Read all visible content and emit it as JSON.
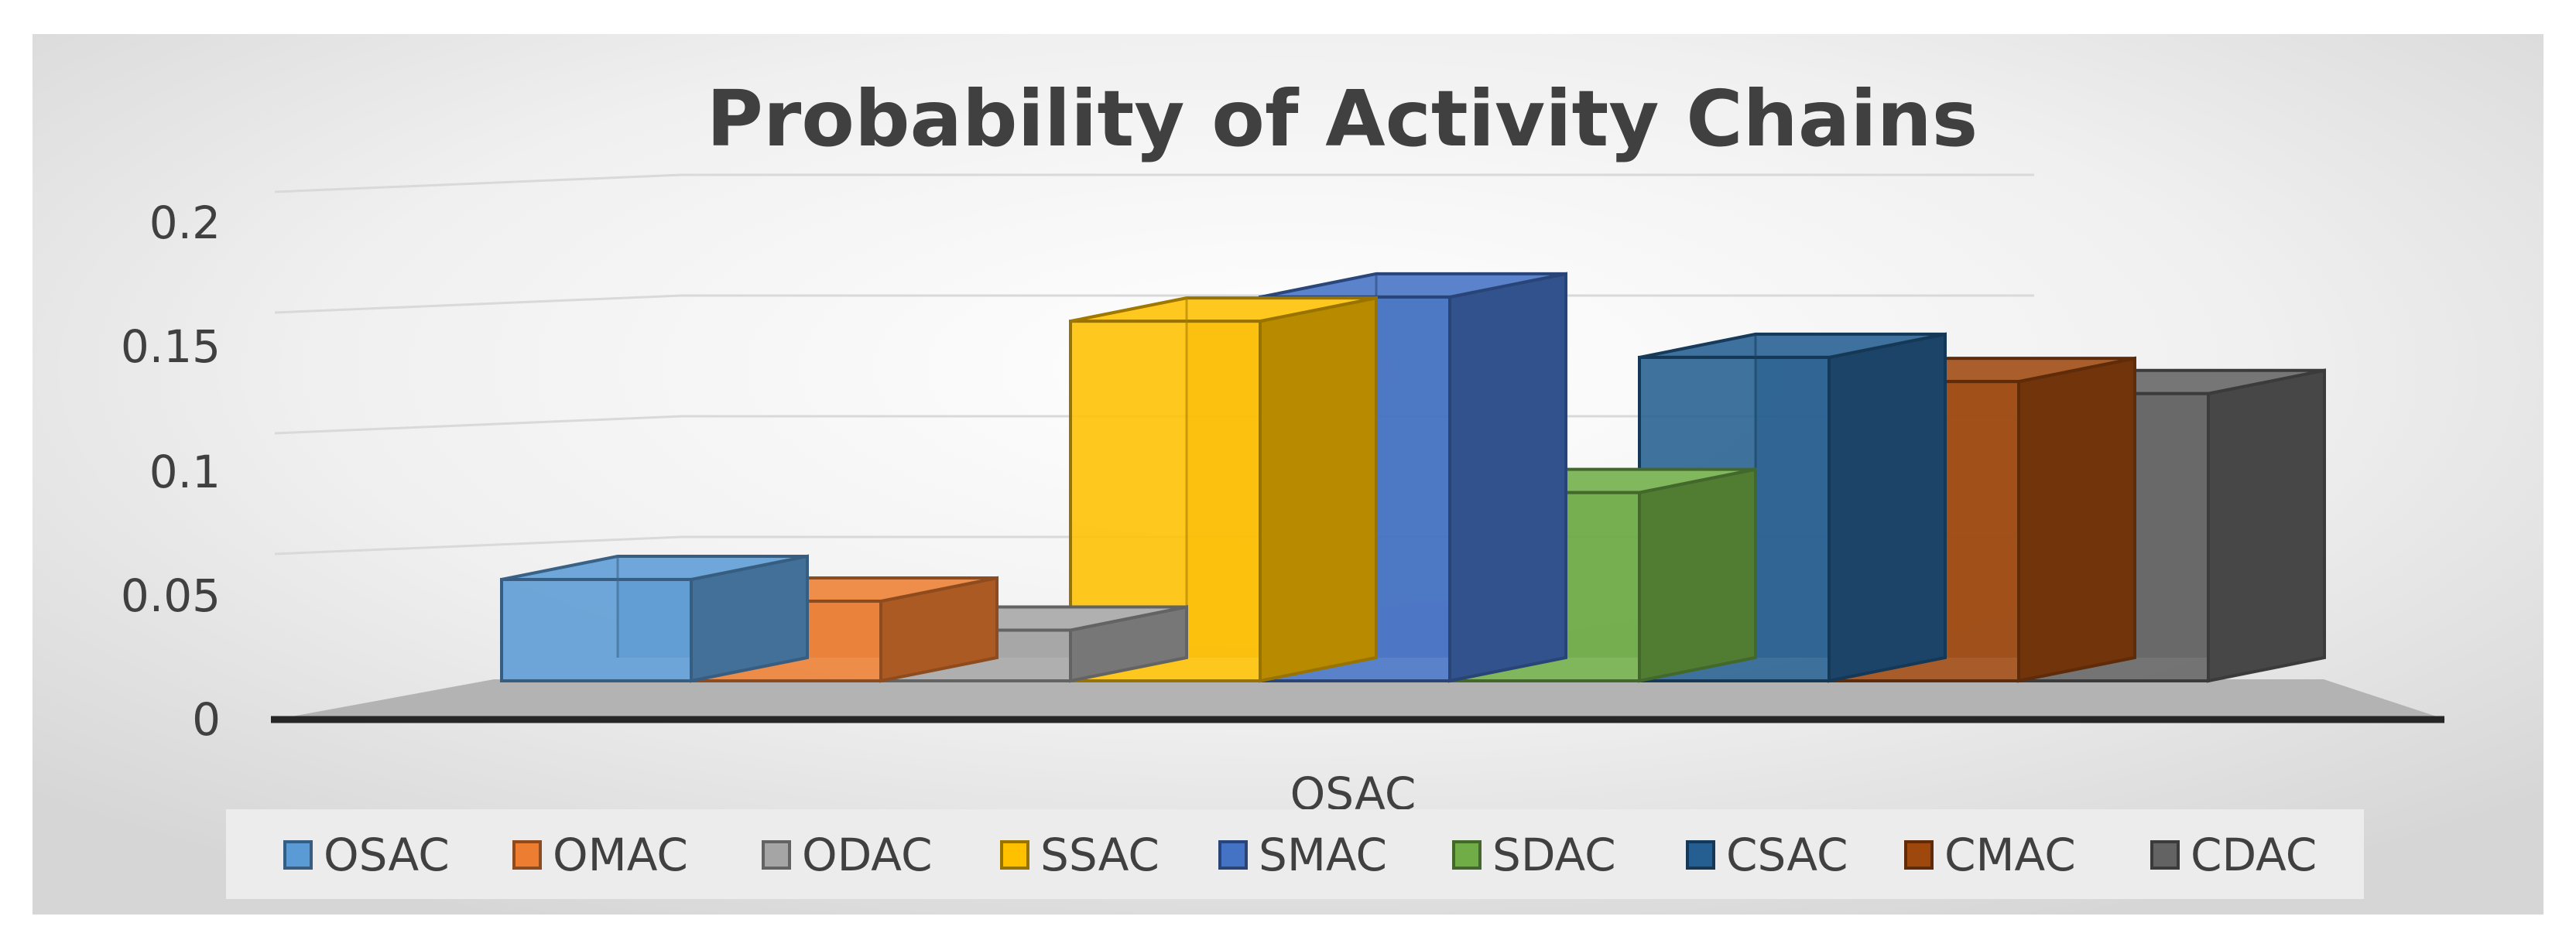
{
  "chart_data": {
    "type": "bar",
    "title": "Probability of Activity Chains",
    "xlabel": "",
    "ylabel": "",
    "categories": [
      "OSAC"
    ],
    "ylim": [
      0,
      0.2
    ],
    "yticks": [
      0,
      0.05,
      0.1,
      0.15,
      0.2
    ],
    "ytick_labels": [
      "0",
      "0.05",
      "0.1",
      "0.15",
      "0.2"
    ],
    "legend_position": "bottom",
    "grid": true,
    "series": [
      {
        "name": "OSAC",
        "values": [
          0.042
        ],
        "color": "#5B9BD5"
      },
      {
        "name": "OMAC",
        "values": [
          0.033
        ],
        "color": "#ED7D31"
      },
      {
        "name": "ODAC",
        "values": [
          0.021
        ],
        "color": "#A5A5A5"
      },
      {
        "name": "SSAC",
        "values": [
          0.149
        ],
        "color": "#FFC000"
      },
      {
        "name": "SMAC",
        "values": [
          0.159
        ],
        "color": "#4472C4"
      },
      {
        "name": "SDAC",
        "values": [
          0.078
        ],
        "color": "#70AD47"
      },
      {
        "name": "CSAC",
        "values": [
          0.134
        ],
        "color": "#255E91"
      },
      {
        "name": "CMAC",
        "values": [
          0.124
        ],
        "color": "#9E480E"
      },
      {
        "name": "CDAC",
        "values": [
          0.119
        ],
        "color": "#636363"
      }
    ]
  }
}
